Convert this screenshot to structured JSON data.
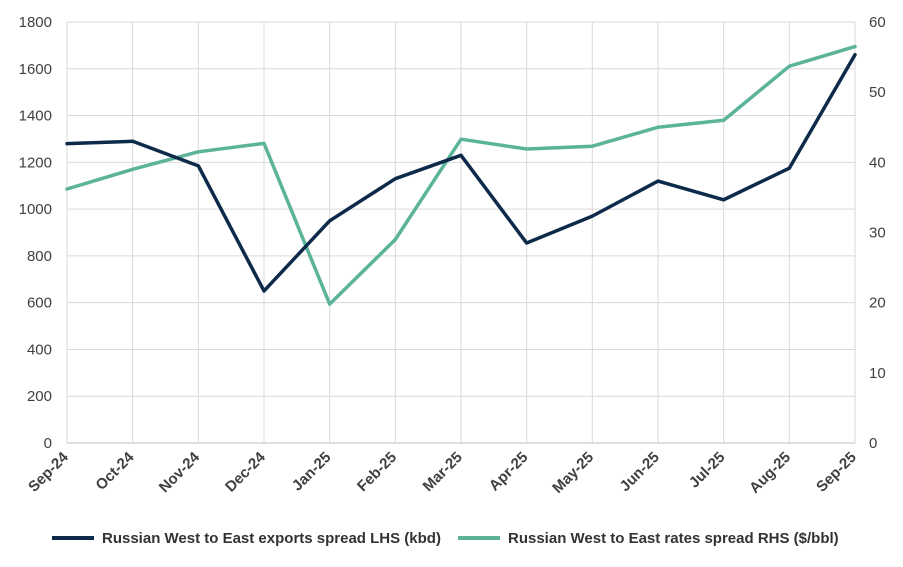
{
  "chart_data": {
    "type": "line",
    "categories": [
      "Sep-24",
      "Oct-24",
      "Nov-24",
      "Dec-24",
      "Jan-25",
      "Feb-25",
      "Mar-25",
      "Apr-25",
      "May-25",
      "Jun-25",
      "Jul-25",
      "Aug-25",
      "Sep-25"
    ],
    "series": [
      {
        "name": "Russian West to East exports spread LHS (kbd)",
        "axis": "left",
        "color": "#0d2a4a",
        "values": [
          1280,
          1290,
          1185,
          650,
          950,
          1130,
          1230,
          855,
          970,
          1120,
          1040,
          1175,
          1660
        ]
      },
      {
        "name": "Russian West to East rates spread RHS ($/bbl)",
        "axis": "right",
        "color": "#5bb39a",
        "values": [
          36.2,
          39.0,
          41.5,
          42.7,
          19.8,
          29.0,
          43.3,
          41.9,
          42.3,
          45.0,
          46.0,
          53.7,
          56.5
        ]
      }
    ],
    "yleft": {
      "lim": [
        0,
        1800
      ],
      "ticks": [
        "0",
        "200",
        "400",
        "600",
        "800",
        "1000",
        "1200",
        "1400",
        "1600",
        "1800"
      ]
    },
    "yright": {
      "lim": [
        0,
        60
      ],
      "ticks": [
        "0",
        "10",
        "20",
        "30",
        "40",
        "50",
        "60"
      ]
    },
    "grid": true,
    "legend": "bottom"
  }
}
